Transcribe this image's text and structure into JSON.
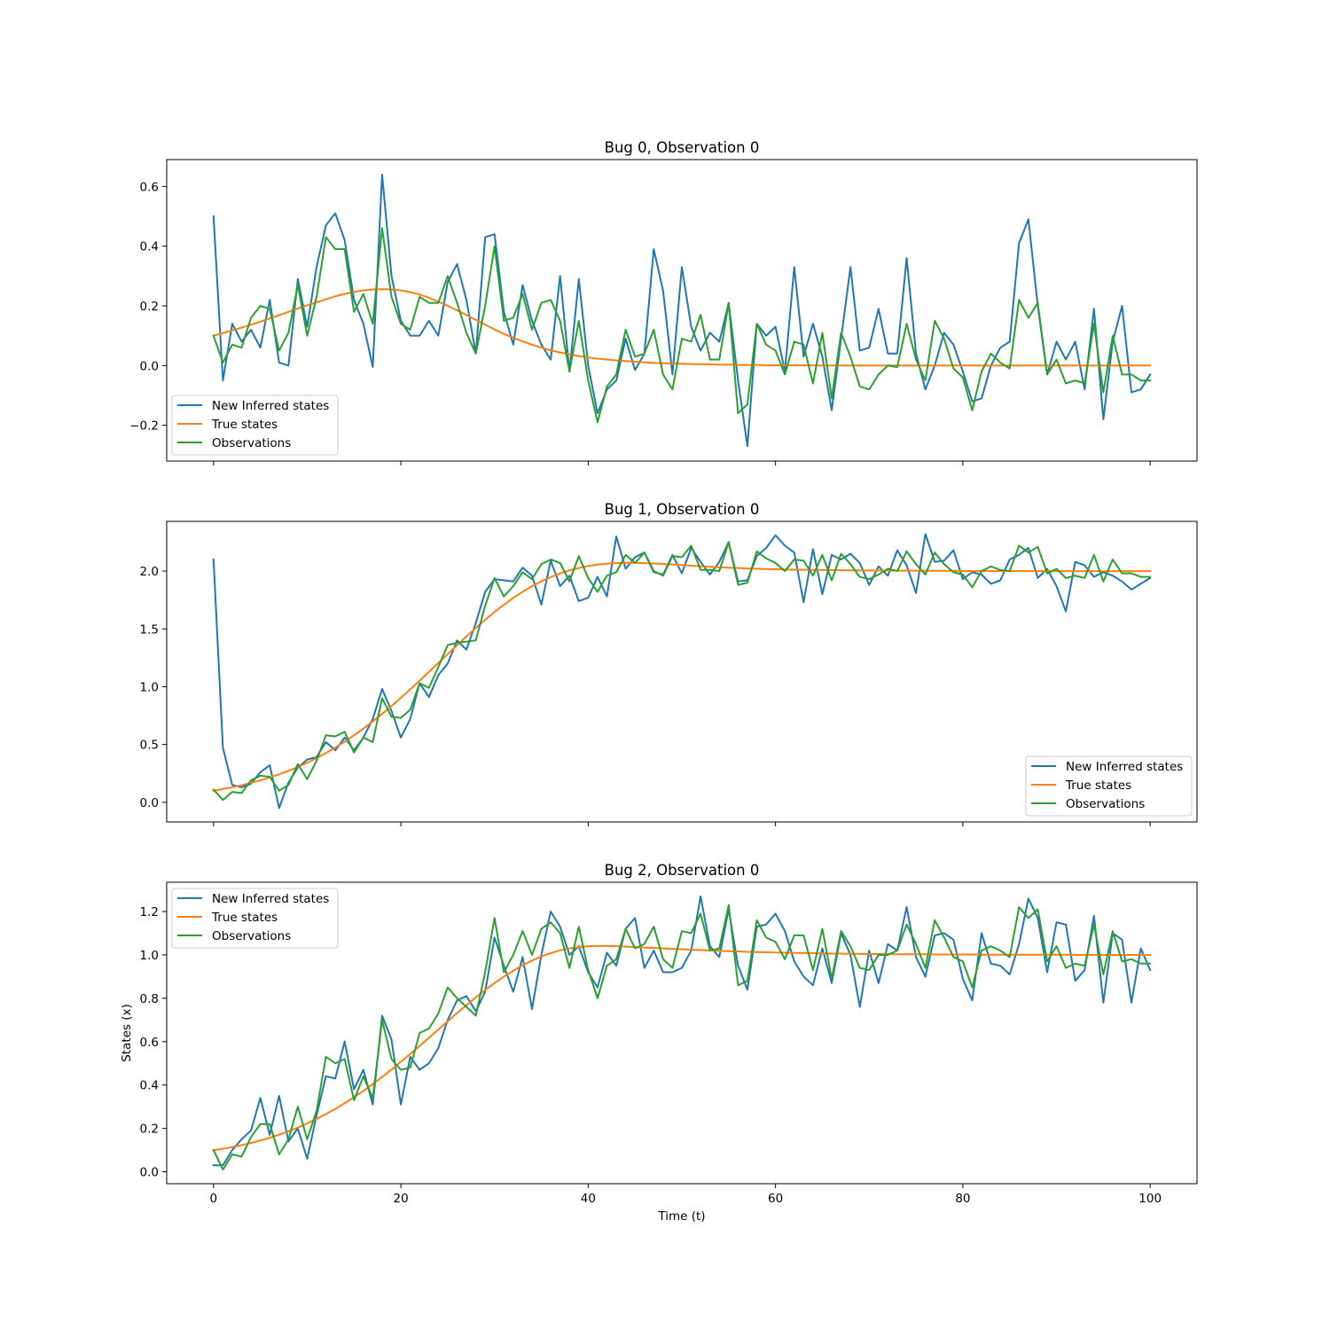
{
  "chart_data": [
    {
      "type": "line",
      "title": "Bug 0, Observation 0",
      "xlabel": "",
      "ylabel": "",
      "xlim": [
        -5,
        105
      ],
      "ylim": [
        -0.32,
        0.69
      ],
      "xticks": [
        0,
        20,
        40,
        60,
        80,
        100
      ],
      "yticks": [
        -0.2,
        0.0,
        0.2,
        0.4,
        0.6
      ],
      "ytick_labels": [
        "−0.2",
        "0.0",
        "0.2",
        "0.4",
        "0.6"
      ],
      "show_xtick_labels": false,
      "legend_placement": "lower-left",
      "series": [
        {
          "name": "New Inferred states",
          "color": "#1f77b4",
          "values": [
            0.5,
            -0.05,
            0.14,
            0.08,
            0.12,
            0.06,
            0.22,
            0.01,
            0.0,
            0.29,
            0.13,
            0.33,
            0.47,
            0.51,
            0.42,
            0.22,
            0.14,
            -0.005,
            0.64,
            0.3,
            0.15,
            0.1,
            0.1,
            0.15,
            0.1,
            0.28,
            0.34,
            0.22,
            0.04,
            0.43,
            0.44,
            0.18,
            0.07,
            0.27,
            0.15,
            0.07,
            0.02,
            0.3,
            -0.02,
            0.29,
            0.0,
            -0.16,
            -0.08,
            -0.05,
            0.09,
            -0.015,
            0.04,
            0.39,
            0.25,
            -0.03,
            0.33,
            0.13,
            0.05,
            0.11,
            0.08,
            0.21,
            -0.05,
            -0.27,
            0.14,
            0.1,
            0.13,
            -0.02,
            0.33,
            0.03,
            0.14,
            0.03,
            -0.15,
            0.09,
            0.33,
            0.05,
            0.06,
            0.19,
            0.04,
            0.04,
            0.36,
            0.04,
            -0.08,
            0.0,
            0.11,
            0.07,
            -0.02,
            -0.12,
            -0.11,
            0.0,
            0.06,
            0.08,
            0.41,
            0.49,
            0.2,
            -0.03,
            0.08,
            0.02,
            0.08,
            -0.08,
            0.19,
            -0.18,
            0.08,
            0.2,
            -0.09,
            -0.08,
            -0.03
          ]
        },
        {
          "name": "True states",
          "color": "#ff7f0e",
          "values": [
            0.1,
            0.109,
            0.118,
            0.127,
            0.137,
            0.147,
            0.158,
            0.169,
            0.18,
            0.191,
            0.202,
            0.212,
            0.222,
            0.232,
            0.24,
            0.247,
            0.252,
            0.255,
            0.256,
            0.255,
            0.252,
            0.246,
            0.238,
            0.227,
            0.214,
            0.2,
            0.185,
            0.169,
            0.153,
            0.137,
            0.121,
            0.106,
            0.093,
            0.081,
            0.07,
            0.06,
            0.051,
            0.044,
            0.038,
            0.032,
            0.027,
            0.023,
            0.02,
            0.017,
            0.015,
            0.013,
            0.011,
            0.009,
            0.008,
            0.007,
            0.006,
            0.005,
            0.004,
            0.004,
            0.003,
            0.003,
            0.002,
            0.002,
            0.002,
            0.001,
            0.001,
            0.001,
            0.001,
            0.001,
            0.001,
            0.0,
            0.0,
            0.0,
            0.0,
            0.0,
            0.0,
            0.0,
            0.0,
            0.0,
            0.0,
            0.0,
            0.0,
            0.0,
            0.0,
            0.0,
            0.0,
            0.0,
            0.0,
            0.0,
            0.0,
            0.0,
            0.0,
            0.0,
            0.0,
            0.0,
            0.0,
            0.0,
            0.0,
            0.0,
            0.0,
            0.0,
            0.0,
            0.0,
            0.0,
            0.0,
            0.0
          ]
        },
        {
          "name": "Observations",
          "color": "#2ca02c",
          "values": [
            0.1,
            0.01,
            0.07,
            0.06,
            0.16,
            0.2,
            0.19,
            0.05,
            0.11,
            0.27,
            0.1,
            0.23,
            0.43,
            0.39,
            0.39,
            0.18,
            0.24,
            0.14,
            0.46,
            0.23,
            0.14,
            0.12,
            0.23,
            0.21,
            0.21,
            0.3,
            0.21,
            0.11,
            0.04,
            0.2,
            0.4,
            0.15,
            0.16,
            0.24,
            0.12,
            0.21,
            0.22,
            0.15,
            -0.02,
            0.15,
            -0.05,
            -0.19,
            -0.07,
            -0.03,
            0.12,
            0.03,
            0.04,
            0.12,
            -0.03,
            -0.08,
            0.09,
            0.08,
            0.17,
            0.02,
            0.02,
            0.21,
            -0.16,
            -0.13,
            0.14,
            0.07,
            0.05,
            -0.03,
            0.08,
            0.07,
            -0.06,
            0.11,
            -0.11,
            0.11,
            0.03,
            -0.07,
            -0.08,
            -0.03,
            0.0,
            -0.005,
            0.14,
            0.02,
            -0.05,
            0.15,
            0.09,
            -0.01,
            -0.04,
            -0.15,
            -0.02,
            0.04,
            0.01,
            -0.01,
            0.22,
            0.16,
            0.21,
            -0.03,
            0.02,
            -0.06,
            -0.05,
            -0.06,
            0.14,
            -0.09,
            0.1,
            -0.03,
            -0.03,
            -0.05,
            -0.05
          ]
        }
      ]
    },
    {
      "type": "line",
      "title": "Bug 1, Observation 0",
      "xlabel": "",
      "ylabel": "",
      "xlim": [
        -5,
        105
      ],
      "ylim": [
        -0.17,
        2.43
      ],
      "xticks": [
        0,
        20,
        40,
        60,
        80,
        100
      ],
      "yticks": [
        0.0,
        0.5,
        1.0,
        1.5,
        2.0
      ],
      "ytick_labels": [
        "0.0",
        "0.5",
        "1.0",
        "1.5",
        "2.0"
      ],
      "show_xtick_labels": false,
      "legend_placement": "lower-right",
      "series": [
        {
          "name": "New Inferred states",
          "color": "#1f77b4",
          "values": [
            2.1,
            0.47,
            0.15,
            0.13,
            0.16,
            0.26,
            0.32,
            -0.05,
            0.17,
            0.3,
            0.37,
            0.39,
            0.52,
            0.45,
            0.56,
            0.45,
            0.56,
            0.72,
            0.98,
            0.79,
            0.56,
            0.72,
            1.03,
            0.91,
            1.1,
            1.2,
            1.4,
            1.32,
            1.55,
            1.82,
            1.93,
            1.92,
            1.91,
            2.03,
            1.96,
            1.71,
            2.09,
            1.87,
            1.96,
            1.74,
            1.77,
            1.95,
            1.78,
            2.3,
            2.02,
            2.12,
            2.16,
            1.99,
            1.97,
            2.14,
            1.98,
            2.2,
            2.08,
            1.97,
            2.08,
            2.25,
            1.91,
            1.92,
            2.13,
            2.2,
            2.31,
            2.22,
            2.16,
            1.73,
            2.19,
            1.8,
            2.14,
            2.1,
            2.15,
            2.07,
            1.88,
            2.04,
            1.96,
            2.18,
            2.05,
            1.81,
            2.32,
            2.08,
            2.09,
            2.18,
            1.93,
            1.99,
            1.97,
            1.89,
            1.92,
            2.1,
            2.14,
            2.2,
            1.94,
            2.02,
            1.87,
            1.65,
            2.08,
            2.05,
            1.95,
            1.99,
            1.96,
            1.91,
            1.84,
            1.89,
            1.94
          ]
        },
        {
          "name": "True states",
          "color": "#ff7f0e",
          "values": [
            0.1,
            0.115,
            0.13,
            0.148,
            0.168,
            0.19,
            0.214,
            0.242,
            0.272,
            0.305,
            0.342,
            0.382,
            0.426,
            0.473,
            0.524,
            0.579,
            0.638,
            0.7,
            0.765,
            0.833,
            0.904,
            0.977,
            1.052,
            1.128,
            1.205,
            1.282,
            1.359,
            1.434,
            1.508,
            1.579,
            1.646,
            1.709,
            1.768,
            1.821,
            1.869,
            1.911,
            1.948,
            1.98,
            2.006,
            2.027,
            2.044,
            2.056,
            2.064,
            2.069,
            2.071,
            2.071,
            2.069,
            2.066,
            2.062,
            2.057,
            2.052,
            2.047,
            2.042,
            2.037,
            2.033,
            2.029,
            2.026,
            2.023,
            2.02,
            2.018,
            2.016,
            2.014,
            2.012,
            2.011,
            2.01,
            2.009,
            2.008,
            2.007,
            2.006,
            2.005,
            2.005,
            2.004,
            2.004,
            2.003,
            2.003,
            2.003,
            2.002,
            2.002,
            2.002,
            2.002,
            2.001,
            2.001,
            2.001,
            2.001,
            2.001,
            2.001,
            2.001,
            2.001,
            2.0,
            2.0,
            2.0,
            2.0,
            2.0,
            2.0,
            2.0,
            2.0,
            2.0,
            2.0,
            2.0,
            2.0,
            2.0
          ]
        },
        {
          "name": "Observations",
          "color": "#2ca02c",
          "values": [
            0.11,
            0.02,
            0.09,
            0.08,
            0.19,
            0.23,
            0.22,
            0.1,
            0.15,
            0.33,
            0.2,
            0.36,
            0.58,
            0.57,
            0.61,
            0.43,
            0.56,
            0.52,
            0.9,
            0.74,
            0.73,
            0.8,
            1.03,
            0.99,
            1.17,
            1.36,
            1.38,
            1.39,
            1.4,
            1.7,
            1.94,
            1.78,
            1.87,
            1.99,
            1.93,
            2.06,
            2.1,
            2.07,
            1.91,
            2.13,
            1.94,
            1.82,
            1.96,
            1.99,
            2.14,
            2.07,
            2.16,
            2.0,
            1.96,
            2.13,
            2.12,
            2.22,
            2.01,
            2.01,
            2.0,
            2.25,
            1.88,
            1.9,
            2.17,
            2.11,
            2.07,
            2.0,
            2.1,
            2.09,
            1.96,
            2.14,
            1.92,
            2.15,
            2.06,
            1.95,
            1.93,
            1.97,
            2.02,
            2.0,
            2.17,
            2.06,
            1.97,
            2.16,
            2.06,
            1.99,
            1.97,
            1.86,
            2.0,
            2.04,
            2.01,
            2.0,
            2.22,
            2.16,
            2.21,
            1.98,
            2.02,
            1.94,
            1.96,
            1.94,
            2.14,
            1.91,
            2.1,
            1.98,
            1.98,
            1.95,
            1.95
          ]
        }
      ]
    },
    {
      "type": "line",
      "title": "Bug 2, Observation 0",
      "xlabel": "Time (t)",
      "ylabel": "States (x)",
      "xlim": [
        -5,
        105
      ],
      "ylim": [
        -0.055,
        1.335
      ],
      "xticks": [
        0,
        20,
        40,
        60,
        80,
        100
      ],
      "xtick_labels": [
        "0",
        "20",
        "40",
        "60",
        "80",
        "100"
      ],
      "yticks": [
        0.0,
        0.2,
        0.4,
        0.6,
        0.8,
        1.0,
        1.2
      ],
      "ytick_labels": [
        "0.0",
        "0.2",
        "0.4",
        "0.6",
        "0.8",
        "1.0",
        "1.2"
      ],
      "show_xtick_labels": true,
      "legend_placement": "upper-left",
      "series": [
        {
          "name": "New Inferred states",
          "color": "#1f77b4",
          "values": [
            0.03,
            0.03,
            0.1,
            0.15,
            0.19,
            0.34,
            0.17,
            0.35,
            0.14,
            0.2,
            0.06,
            0.26,
            0.44,
            0.43,
            0.6,
            0.38,
            0.47,
            0.31,
            0.72,
            0.61,
            0.31,
            0.53,
            0.47,
            0.5,
            0.57,
            0.7,
            0.79,
            0.81,
            0.74,
            0.83,
            1.08,
            0.95,
            0.83,
            0.99,
            0.75,
            1.0,
            1.2,
            1.13,
            1.0,
            1.04,
            0.92,
            0.85,
            1.01,
            0.95,
            1.12,
            1.17,
            0.94,
            1.02,
            0.92,
            0.92,
            0.94,
            1.02,
            1.27,
            1.04,
            0.99,
            1.21,
            0.95,
            0.84,
            1.13,
            1.14,
            1.19,
            1.11,
            0.97,
            0.9,
            0.86,
            1.03,
            0.87,
            1.1,
            1.0,
            0.76,
            1.02,
            0.87,
            1.05,
            1.02,
            1.22,
            0.99,
            0.9,
            1.09,
            1.1,
            1.07,
            0.89,
            0.79,
            1.1,
            0.96,
            0.95,
            0.91,
            1.05,
            1.26,
            1.17,
            0.92,
            1.15,
            1.14,
            0.88,
            0.93,
            1.18,
            0.78,
            1.1,
            1.07,
            0.78,
            1.03,
            0.93
          ]
        },
        {
          "name": "True states",
          "color": "#ff7f0e",
          "values": [
            0.1,
            0.106,
            0.114,
            0.123,
            0.133,
            0.144,
            0.157,
            0.171,
            0.187,
            0.204,
            0.223,
            0.244,
            0.266,
            0.29,
            0.316,
            0.344,
            0.373,
            0.404,
            0.437,
            0.471,
            0.507,
            0.543,
            0.58,
            0.618,
            0.656,
            0.694,
            0.732,
            0.768,
            0.804,
            0.838,
            0.87,
            0.9,
            0.927,
            0.952,
            0.974,
            0.993,
            1.008,
            1.021,
            1.03,
            1.036,
            1.04,
            1.041,
            1.041,
            1.04,
            1.038,
            1.036,
            1.034,
            1.032,
            1.03,
            1.028,
            1.026,
            1.024,
            1.022,
            1.02,
            1.019,
            1.017,
            1.016,
            1.014,
            1.013,
            1.012,
            1.011,
            1.01,
            1.009,
            1.009,
            1.008,
            1.007,
            1.006,
            1.006,
            1.005,
            1.005,
            1.004,
            1.004,
            1.004,
            1.003,
            1.003,
            1.003,
            1.003,
            1.002,
            1.002,
            1.002,
            1.002,
            1.002,
            1.001,
            1.001,
            1.001,
            1.001,
            1.001,
            1.001,
            1.001,
            1.001,
            1.001,
            1.001,
            1.0,
            1.0,
            1.0,
            1.0,
            1.0,
            1.0,
            1.0,
            1.0,
            1.0
          ]
        },
        {
          "name": "Observations",
          "color": "#2ca02c",
          "values": [
            0.1,
            0.01,
            0.08,
            0.07,
            0.16,
            0.22,
            0.22,
            0.08,
            0.15,
            0.3,
            0.15,
            0.28,
            0.53,
            0.5,
            0.52,
            0.33,
            0.44,
            0.34,
            0.7,
            0.52,
            0.47,
            0.48,
            0.64,
            0.66,
            0.73,
            0.85,
            0.8,
            0.76,
            0.72,
            0.92,
            1.17,
            0.92,
            1.0,
            1.11,
            1.0,
            1.12,
            1.15,
            1.1,
            0.94,
            1.13,
            0.93,
            0.8,
            0.95,
            0.98,
            1.12,
            1.03,
            1.05,
            1.13,
            0.98,
            0.94,
            1.11,
            1.1,
            1.19,
            1.02,
            1.03,
            1.23,
            0.86,
            0.88,
            1.16,
            1.08,
            1.06,
            0.98,
            1.09,
            1.09,
            0.93,
            1.12,
            0.89,
            1.11,
            1.04,
            0.94,
            0.93,
            1.0,
            1.0,
            1.02,
            1.14,
            1.05,
            0.94,
            1.16,
            1.08,
            0.99,
            0.97,
            0.85,
            1.02,
            1.04,
            1.02,
            0.99,
            1.22,
            1.17,
            1.21,
            0.97,
            1.04,
            0.94,
            0.96,
            0.95,
            1.14,
            0.91,
            1.11,
            0.97,
            0.98,
            0.96,
            0.96
          ]
        }
      ]
    }
  ]
}
